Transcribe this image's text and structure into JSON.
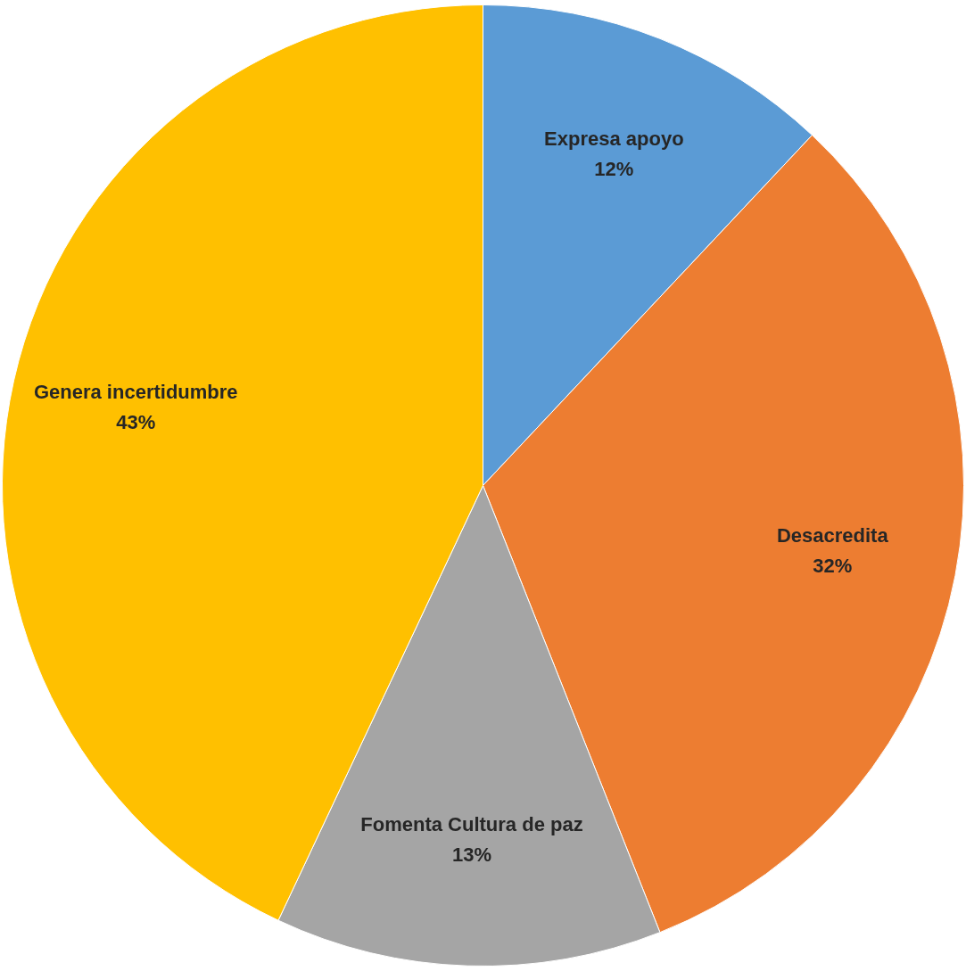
{
  "chart_data": {
    "type": "pie",
    "categories": [
      "Expresa apoyo",
      "Desacredita",
      "Fomenta Cultura de paz",
      "Genera incertidumbre"
    ],
    "values": [
      12,
      32,
      13,
      43
    ],
    "colors": [
      "#5b9bd5",
      "#ed7d31",
      "#a5a5a5",
      "#ffc000"
    ],
    "value_labels": [
      "12%",
      "32%",
      "13%",
      "43%"
    ],
    "legend": false
  }
}
